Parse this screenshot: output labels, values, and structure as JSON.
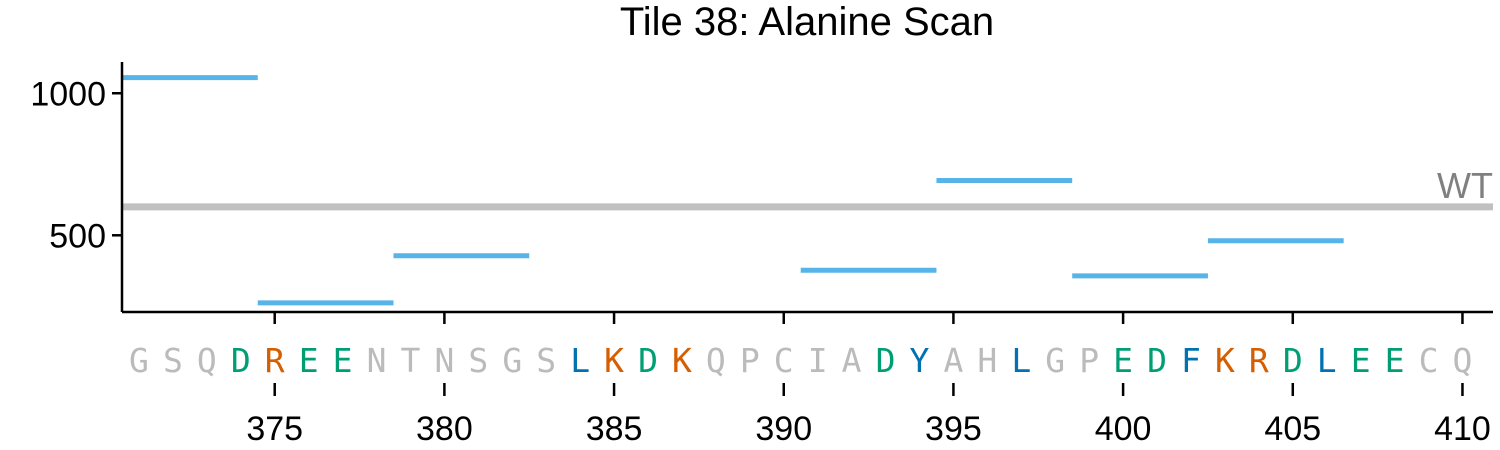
{
  "chart_data": {
    "type": "line",
    "title": "Tile 38: Alanine Scan",
    "xlabel": "",
    "ylabel": "",
    "xlim": [
      370.5,
      410.9
    ],
    "ylim": [
      230,
      1110
    ],
    "y_ticks": [
      {
        "value": 1000,
        "label": "1000"
      },
      {
        "value": 500,
        "label": "500"
      }
    ],
    "x_ticks": [
      {
        "value": 375,
        "label": "375"
      },
      {
        "value": 380,
        "label": "380"
      },
      {
        "value": 385,
        "label": "385"
      },
      {
        "value": 390,
        "label": "390"
      },
      {
        "value": 395,
        "label": "395"
      },
      {
        "value": 400,
        "label": "400"
      },
      {
        "value": 405,
        "label": "405"
      },
      {
        "value": 410,
        "label": "410"
      }
    ],
    "reference_line": {
      "label": "WT",
      "value": 600,
      "color": "#c0c0c0",
      "label_color": "#808080"
    },
    "series_color": "#56b4e9",
    "segments": [
      {
        "x_start": 370.5,
        "x_end": 374.5,
        "value": 1055
      },
      {
        "x_start": 374.5,
        "x_end": 378.5,
        "value": 262
      },
      {
        "x_start": 378.5,
        "x_end": 382.5,
        "value": 428
      },
      {
        "x_start": 390.5,
        "x_end": 394.5,
        "value": 377
      },
      {
        "x_start": 394.5,
        "x_end": 398.5,
        "value": 693
      },
      {
        "x_start": 398.5,
        "x_end": 402.5,
        "value": 357
      },
      {
        "x_start": 402.5,
        "x_end": 406.5,
        "value": 481
      }
    ],
    "sequence_start": 371,
    "sequence": [
      "G",
      "S",
      "Q",
      "D",
      "R",
      "E",
      "E",
      "N",
      "T",
      "N",
      "S",
      "G",
      "S",
      "L",
      "K",
      "D",
      "K",
      "Q",
      "P",
      "C",
      "I",
      "A",
      "D",
      "Y",
      "A",
      "H",
      "L",
      "G",
      "P",
      "E",
      "D",
      "F",
      "K",
      "R",
      "D",
      "L",
      "E",
      "E",
      "C",
      "Q"
    ],
    "residue_colors": {
      "D": "#009e73",
      "E": "#009e73",
      "R": "#d55e00",
      "K": "#d55e00",
      "L": "#0072b2",
      "Y": "#0072b2",
      "F": "#0072b2",
      "other": "#bbbbbb"
    }
  }
}
